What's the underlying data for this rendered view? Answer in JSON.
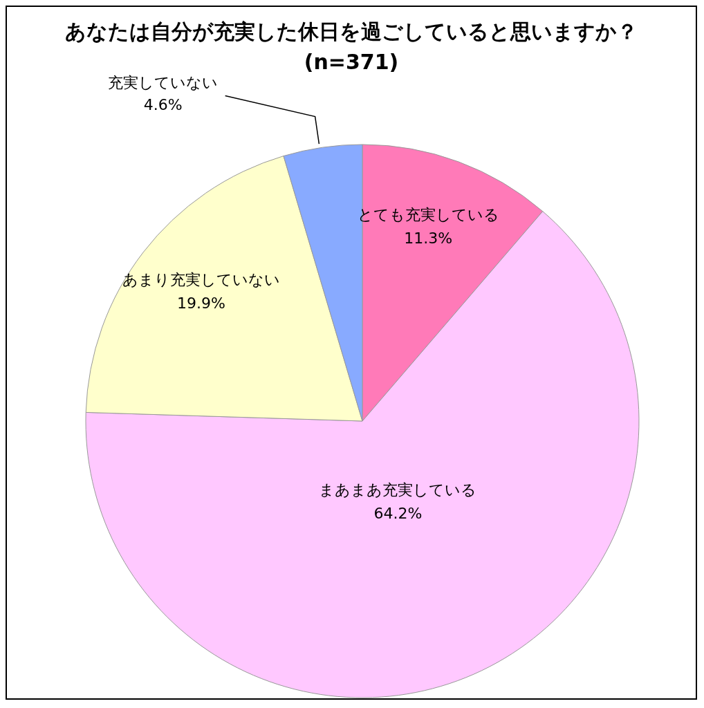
{
  "chart_data": {
    "type": "pie",
    "title": "あなたは自分が充実した休日を過ごしていると思いますか？(n=371)",
    "categories": [
      "とても充実している",
      "まあまあ充実している",
      "あまり充実していない",
      "充実していない"
    ],
    "values": [
      11.3,
      64.2,
      19.9,
      4.6
    ],
    "colors": [
      "#ff7ab8",
      "#ffc8ff",
      "#ffffcc",
      "#88aaff"
    ],
    "value_labels": [
      "11.3%",
      "64.2%",
      "19.9%",
      "4.6%"
    ],
    "legend": false
  }
}
